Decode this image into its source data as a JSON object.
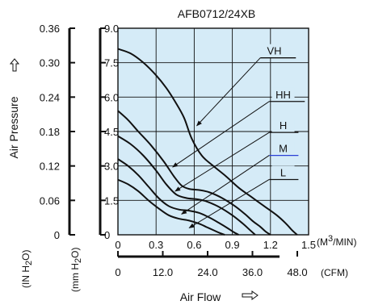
{
  "chart_data": {
    "type": "line",
    "title": "AFB0712/24XB",
    "ylabel": "Air Pressure",
    "ylabel_unit_inh2o_main": "(IN H",
    "ylabel_unit_inh2o_sub": "2",
    "ylabel_unit_inh2o_end": "O)",
    "ylabel_unit_mmh2o_main": "(mm H",
    "ylabel_unit_mmh2o_sub": "2",
    "ylabel_unit_mmh2o_end": "O)",
    "xlabel": "Air Flow",
    "x_unit_m3min_pre": "(M",
    "x_unit_m3min_sup": "3",
    "x_unit_m3min_post": "/MIN)",
    "x_unit_cfm": "(CFM)",
    "ylim": [
      0,
      9.0
    ],
    "xlim": [
      0,
      1.5
    ],
    "y_ticks_mmh2o": [
      "0",
      "1.5",
      "3.0",
      "4.5",
      "6.0",
      "7.5",
      "9.0"
    ],
    "y_ticks_inh2o": [
      "0",
      "0.06",
      "0.12",
      "0.18",
      "0.24",
      "0.30",
      "0.36"
    ],
    "x_ticks_m3min": [
      "0",
      "0.3",
      "0.6",
      "0.9",
      "1.2",
      "1.5"
    ],
    "x_ticks_cfm": [
      "0",
      "12.0",
      "24.0",
      "36.0",
      "48.0"
    ],
    "grid": true,
    "series": [
      {
        "name": "VH",
        "x": [
          0,
          0.1,
          0.2,
          0.3,
          0.38,
          0.45,
          0.52,
          0.58,
          0.66,
          0.75,
          0.85,
          0.95,
          1.05,
          1.15,
          1.25,
          1.32,
          1.37,
          1.41
        ],
        "y": [
          8.1,
          7.9,
          7.5,
          6.95,
          6.4,
          5.8,
          5.1,
          4.2,
          3.45,
          3.0,
          2.55,
          2.05,
          1.65,
          1.25,
          0.85,
          0.5,
          0.2,
          0
        ]
      },
      {
        "name": "HH",
        "x": [
          0,
          0.08,
          0.16,
          0.26,
          0.36,
          0.44,
          0.5,
          0.56,
          0.64,
          0.72,
          0.82,
          0.92,
          1.0,
          1.06,
          1.12,
          1.16,
          1.2
        ],
        "y": [
          5.4,
          5.0,
          4.5,
          3.9,
          3.2,
          2.55,
          2.15,
          2.0,
          1.95,
          1.85,
          1.6,
          1.25,
          0.9,
          0.6,
          0.35,
          0.15,
          0
        ]
      },
      {
        "name": "H",
        "x": [
          0,
          0.1,
          0.2,
          0.3,
          0.38,
          0.46,
          0.54,
          0.62,
          0.7,
          0.8,
          0.9,
          0.98,
          1.04,
          1.08
        ],
        "y": [
          4.3,
          3.95,
          3.45,
          2.8,
          2.2,
          1.75,
          1.6,
          1.55,
          1.45,
          1.2,
          0.85,
          0.5,
          0.2,
          0
        ]
      },
      {
        "name": "M",
        "x": [
          0,
          0.08,
          0.16,
          0.24,
          0.32,
          0.4,
          0.48,
          0.56,
          0.64,
          0.72,
          0.8,
          0.86,
          0.91,
          0.95
        ],
        "y": [
          3.3,
          3.0,
          2.6,
          2.1,
          1.6,
          1.25,
          1.1,
          1.05,
          0.95,
          0.75,
          0.5,
          0.3,
          0.12,
          0
        ]
      },
      {
        "name": "L",
        "x": [
          0,
          0.08,
          0.16,
          0.24,
          0.32,
          0.4,
          0.48,
          0.56,
          0.64,
          0.7,
          0.76,
          0.8,
          0.84
        ],
        "y": [
          2.4,
          2.2,
          1.9,
          1.5,
          1.15,
          0.85,
          0.7,
          0.62,
          0.48,
          0.33,
          0.18,
          0.08,
          0
        ]
      }
    ],
    "labels": [
      {
        "text": "VH",
        "x": 1.23,
        "y": 7.85,
        "tip_x": 0.62,
        "tip_y": 4.75,
        "line_x": [
          1.12,
          1.4
        ],
        "underline_color": "#111111"
      },
      {
        "text": "HH",
        "x": 1.3,
        "y": 5.95,
        "tip_x": 0.43,
        "tip_y": 2.95,
        "line_x": [
          1.19,
          1.47
        ],
        "underline_color": "#111111"
      },
      {
        "text": "H",
        "x": 1.3,
        "y": 4.6,
        "tip_x": 0.45,
        "tip_y": 1.9,
        "line_x": [
          1.19,
          1.42
        ],
        "underline_color": "#111111"
      },
      {
        "text": "M",
        "x": 1.3,
        "y": 3.6,
        "tip_x": 0.5,
        "tip_y": 0.9,
        "line_x": [
          1.19,
          1.42
        ],
        "underline_color": "#2a3fd6"
      },
      {
        "text": "L",
        "x": 1.3,
        "y": 2.55,
        "tip_x": 0.56,
        "tip_y": 0.3,
        "line_x": [
          1.19,
          1.42
        ],
        "underline_color": "#111111"
      }
    ],
    "colors": {
      "plot_background": "#d5ebf7",
      "grid": "#111111",
      "curve": "#111111"
    }
  }
}
